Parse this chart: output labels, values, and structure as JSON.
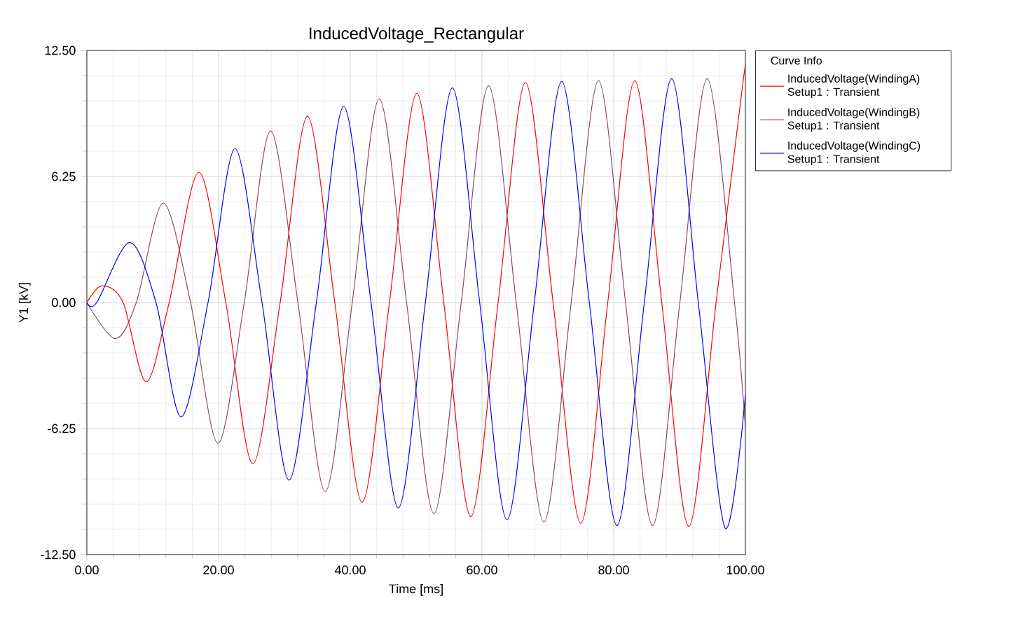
{
  "chart_data": {
    "type": "line",
    "title": "InducedVoltage_Rectangular",
    "xlabel": "Time [ms]",
    "ylabel": "Y1 [kV]",
    "legend_title": "Curve Info",
    "legend": "top right",
    "grid": true,
    "marker": "none",
    "line_style": "solid",
    "xlim": [
      0,
      100
    ],
    "ylim": [
      -12.5,
      12.5
    ],
    "xticks": [
      {
        "value": 0,
        "label": "0.00"
      },
      {
        "value": 20,
        "label": "20.00"
      },
      {
        "value": 40,
        "label": "40.00"
      },
      {
        "value": 60,
        "label": "60.00"
      },
      {
        "value": 80,
        "label": "80.00"
      },
      {
        "value": 100,
        "label": "100.00"
      }
    ],
    "yticks": [
      {
        "value": -12.5,
        "label": "-12.50"
      },
      {
        "value": -6.25,
        "label": "-6.25"
      },
      {
        "value": 0,
        "label": "0.00"
      },
      {
        "value": 6.25,
        "label": "6.25"
      },
      {
        "value": 12.5,
        "label": "12.50"
      }
    ],
    "series": [
      {
        "name": "InducedVoltage(WindingA) Setup1 : Transient",
        "color": "#ff0000",
        "x": [
          0,
          2.3,
          5.5,
          9.0,
          12.5,
          17.0,
          21.1,
          25.2,
          29.35,
          33.5,
          37.65,
          41.8,
          45.95,
          50.1,
          54.2,
          58.3,
          62.45,
          66.6,
          70.8,
          75.0,
          79.1,
          83.2,
          87.3,
          91.4,
          95.55,
          99.7,
          100
        ],
        "values": [
          0,
          0.83,
          0,
          -3.93,
          0,
          6.46,
          0,
          -8.0,
          0,
          9.23,
          0,
          -9.91,
          0,
          10.38,
          0,
          -10.62,
          0,
          10.91,
          0,
          -10.95,
          0,
          11.0,
          0,
          -11.1,
          0,
          11.1,
          11.08
        ]
      },
      {
        "name": "InducedVoltage(WindingB) Setup1 : Transient",
        "color": "#8b4a62",
        "x": [
          0,
          4.3,
          7.5,
          11.6,
          15.75,
          19.9,
          23.9,
          27.9,
          32.05,
          36.2,
          40.3,
          44.4,
          48.55,
          52.7,
          56.85,
          61.0,
          65.2,
          69.4,
          73.55,
          77.7,
          81.8,
          85.9,
          90.05,
          94.2,
          98.35,
          100
        ],
        "values": [
          0,
          -1.79,
          0,
          4.93,
          0,
          -6.98,
          0,
          8.51,
          0,
          -9.38,
          0,
          10.1,
          0,
          -10.47,
          0,
          10.75,
          0,
          -10.89,
          0,
          11.0,
          0,
          -11.06,
          0,
          11.1,
          0,
          -6.2
        ]
      },
      {
        "name": "InducedVoltage(WindingC) Setup1 : Transient",
        "color": "#0000ff",
        "x": [
          0,
          1.5,
          6.5,
          10.5,
          14.3,
          18.4,
          22.5,
          26.6,
          30.7,
          34.85,
          39.0,
          43.15,
          47.3,
          51.4,
          55.5,
          59.65,
          63.8,
          67.95,
          72.1,
          76.3,
          80.5,
          84.65,
          88.8,
          92.85,
          96.9,
          100
        ],
        "values": [
          0,
          0,
          2.97,
          0,
          -5.67,
          0,
          7.63,
          0,
          -8.81,
          0,
          9.73,
          0,
          -10.19,
          0,
          10.65,
          0,
          -10.78,
          0,
          10.97,
          0,
          -11.06,
          0,
          11.1,
          0,
          -11.17,
          -4.6
        ]
      }
    ]
  }
}
